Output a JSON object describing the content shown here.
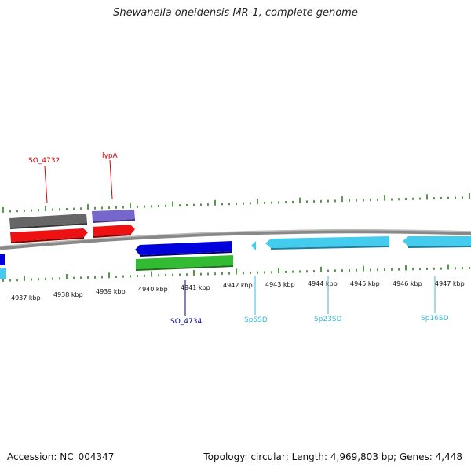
{
  "title": "Shewanella oneidensis MR-1, complete genome",
  "footer": {
    "accession": "Accession: NC_004347",
    "summary": "Topology: circular; Length: 4,969,803 bp; Genes: 4,448"
  },
  "colors": {
    "backbone": "#888888",
    "tick": "#2e7d22",
    "dark_red": "#cc0000",
    "navy": "#000099",
    "cyan": "#33bbdd"
  },
  "ticks": {
    "labels": [
      "4937 kbp",
      "4938 kbp",
      "4939 kbp",
      "4940 kbp",
      "4941 kbp",
      "4942 kbp",
      "4943 kbp",
      "4944 kbp",
      "4945 kbp",
      "4946 kbp",
      "4947 kbp"
    ]
  },
  "gene_labels": [
    {
      "text": "SO_4732",
      "color": "#cc0000"
    },
    {
      "text": "lypA",
      "color": "#cc0000"
    },
    {
      "text": "SO_4734",
      "color": "#000099"
    },
    {
      "text": "Sp5SD",
      "color": "#33bbdd"
    },
    {
      "text": "Sp23SD",
      "color": "#33bbdd"
    },
    {
      "text": "Sp16SD",
      "color": "#33bbdd"
    }
  ],
  "feature_colors": {
    "grey": "#666666",
    "violet": "#7766cc",
    "red": "#ee1111",
    "blue": "#0000dd",
    "green": "#33bb33",
    "sky": "#44ccee"
  }
}
